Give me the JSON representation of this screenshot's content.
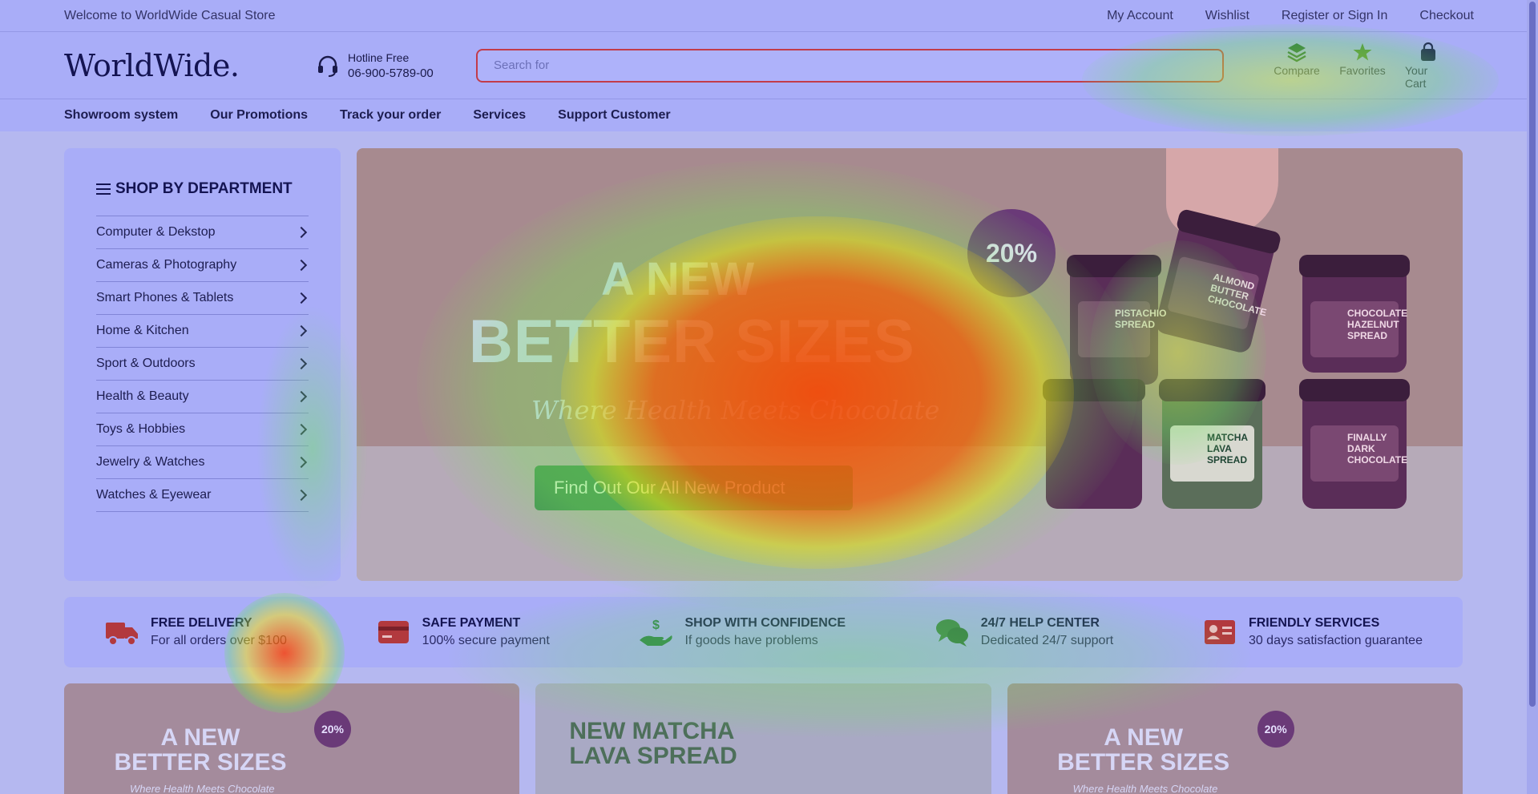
{
  "topbar": {
    "welcome": "Welcome to WorldWide Casual Store",
    "links": [
      "My Account",
      "Wishlist",
      "Register or Sign In",
      "Checkout"
    ]
  },
  "header": {
    "logo": "WorldWide.",
    "hotline_label": "Hotline Free",
    "hotline_number": "06-900-5789-00",
    "search_placeholder": "Search for",
    "icons": [
      {
        "label": "Compare",
        "icon": "layers-icon"
      },
      {
        "label": "Favorites",
        "icon": "star-icon"
      },
      {
        "label": "Your Cart",
        "icon": "bag-icon"
      }
    ]
  },
  "nav": {
    "items": [
      "Showroom system",
      "Our Promotions",
      "Track your order",
      "Services",
      "Support Customer"
    ]
  },
  "sidebar": {
    "title": "SHOP BY DEPARTMENT",
    "items": [
      "Computer & Dekstop",
      "Cameras & Photography",
      "Smart Phones & Tablets",
      "Home & Kitchen",
      "Sport & Outdoors",
      "Health & Beauty",
      "Toys & Hobbies",
      "Jewelry & Watches",
      "Watches & Eyewear"
    ]
  },
  "hero": {
    "title_line1": "A NEW",
    "title_line2": "BETTER SIZES",
    "subtitle": "Where Health Meets Chocolate",
    "badge": "20%",
    "cta": "Find Out Our All New Product",
    "jar_labels": [
      "ALMOND BUTTER CHOCOLATE",
      "CHOCOLATE HAZELNUT SPREAD",
      "MATCHA LAVA SPREAD",
      "FINALLY DARK CHOCOLATE",
      "PISTACHIO SPREAD"
    ]
  },
  "features": [
    {
      "title": "FREE DELIVERY",
      "desc": "For all orders over $100",
      "icon": "truck-icon"
    },
    {
      "title": "SAFE PAYMENT",
      "desc": "100% secure payment",
      "icon": "credit-card-icon"
    },
    {
      "title": "SHOP WITH CONFIDENCE",
      "desc": "If goods have problems",
      "icon": "hand-money-icon"
    },
    {
      "title": "24/7 HELP CENTER",
      "desc": "Dedicated 24/7 support",
      "icon": "chat-icon"
    },
    {
      "title": "FRIENDLY SERVICES",
      "desc": "30 days satisfaction guarantee",
      "icon": "id-card-icon"
    }
  ],
  "promos": [
    {
      "title": "A NEW\nBETTER SIZES",
      "subtitle": "Where Health Meets Chocolate",
      "badge": "20%"
    },
    {
      "title": "NEW MATCHA\nLAVA SPREAD",
      "subtitle": "",
      "badge": ""
    },
    {
      "title": "A NEW\nBETTER SIZES",
      "subtitle": "Where Health Meets Chocolate",
      "badge": "20%"
    }
  ],
  "colors": {
    "accent_red": "#c23b4a",
    "navy": "#141452",
    "cta_green": "#3f8c57",
    "badge_purple": "#6a3a78"
  }
}
